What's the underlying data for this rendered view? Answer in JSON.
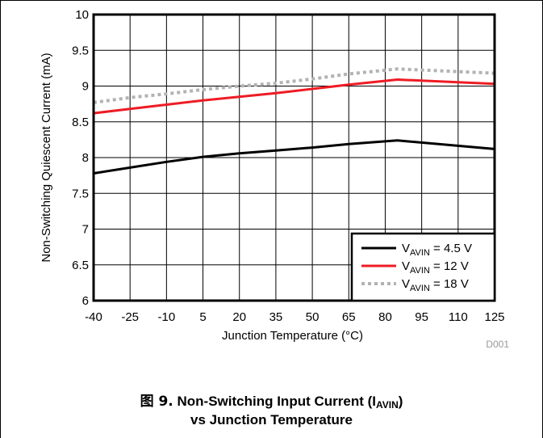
{
  "chart_data": {
    "type": "line",
    "x": [
      -40,
      -25,
      -10,
      5,
      20,
      35,
      50,
      65,
      85,
      125
    ],
    "series": [
      {
        "label_main": "V",
        "label_sub": "AVIN",
        "label_rest": " = 4.5 V",
        "values": [
          7.78,
          7.86,
          7.94,
          8.01,
          8.06,
          8.1,
          8.14,
          8.19,
          8.24,
          8.12
        ],
        "color": "#000000",
        "dash": "solid"
      },
      {
        "label_main": "V",
        "label_sub": "AVIN",
        "label_rest": " = 12 V",
        "values": [
          8.62,
          8.68,
          8.74,
          8.8,
          8.85,
          8.9,
          8.96,
          9.02,
          9.09,
          9.03
        ],
        "color": "#ee1c25",
        "dash": "solid"
      },
      {
        "label_main": "V",
        "label_sub": "AVIN",
        "label_rest": " = 18 V",
        "values": [
          8.77,
          8.84,
          8.89,
          8.95,
          9.0,
          9.04,
          9.1,
          9.17,
          9.24,
          9.18
        ],
        "color": "#b3b3b3",
        "dash": "dotted"
      }
    ],
    "xticks": [
      "-40",
      "-25",
      "-10",
      "5",
      "20",
      "35",
      "50",
      "65",
      "80",
      "95",
      "110",
      "125"
    ],
    "yticks": [
      "6",
      "6.5",
      "7",
      "7.5",
      "8",
      "8.5",
      "9",
      "9.5",
      "10"
    ],
    "xlim": [
      -40,
      125
    ],
    "ylim": [
      6,
      10
    ],
    "xlabel": "Junction Temperature (°C)",
    "ylabel": "Non-Switching Quiescent Current (mA)",
    "grid": true,
    "legend": "bottom-right",
    "watermark": "D001"
  },
  "caption": {
    "fig_prefix": "图 9.",
    "line1_start": " Non-Switching Input Current (I",
    "line1_sub": "AVIN",
    "line1_end": ")",
    "line2": "vs Junction Temperature"
  }
}
